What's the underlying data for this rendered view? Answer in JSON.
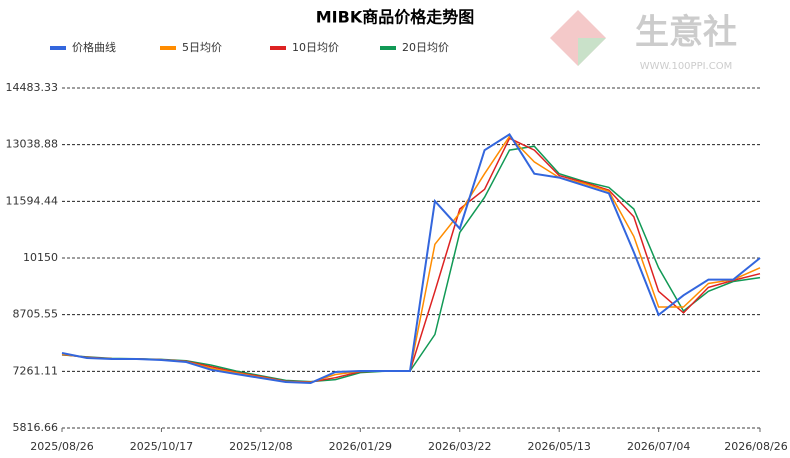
{
  "chart_data": {
    "type": "line",
    "title": "MIBK商品价格走势图",
    "watermark": {
      "name": "生意社",
      "url": "WWW.100PPI.COM"
    },
    "x": [
      "2025/08/26",
      "2025/09/08",
      "2025/09/21",
      "2025/10/04",
      "2025/10/17",
      "2025/10/30",
      "2025/11/12",
      "2025/11/25",
      "2025/12/08",
      "2025/12/21",
      "2026/01/03",
      "2026/01/16",
      "2026/01/29",
      "2026/02/11",
      "2026/02/24",
      "2026/03/09",
      "2026/03/22",
      "2026/04/04",
      "2026/04/17",
      "2026/04/30",
      "2026/05/13",
      "2026/05/26",
      "2026/06/08",
      "2026/06/21",
      "2026/07/04",
      "2026/07/17",
      "2026/07/30",
      "2026/08/12",
      "2026/08/26"
    ],
    "xlim": [
      "2025/08/26",
      "2026/08/26"
    ],
    "xticks": [
      "2025/08/26",
      "2025/10/17",
      "2025/12/08",
      "2026/01/29",
      "2026/03/22",
      "2026/05/13",
      "2026/07/04",
      "2026/08/26"
    ],
    "ylim": [
      5816.66,
      14483.33
    ],
    "yticks": [
      5816.66,
      7261.11,
      8705.55,
      10150,
      11594.44,
      13038.88,
      14483.33
    ],
    "grid": true,
    "legend": "top",
    "series": [
      {
        "name": "价格曲线",
        "color": "#3366dd",
        "values": [
          7728,
          7600,
          7575,
          7575,
          7550,
          7500,
          7300,
          7193,
          7090,
          6990,
          6964,
          7244,
          7270,
          7270,
          7270,
          11600,
          10900,
          12900,
          13300,
          12300,
          12200,
          12000,
          11800,
          10300,
          8700,
          9200,
          9600,
          9600,
          10150
        ]
      },
      {
        "name": "5日均价",
        "color": "#ff8c00",
        "values": [
          7700,
          7610,
          7580,
          7575,
          7555,
          7510,
          7340,
          7220,
          7110,
          7000,
          6980,
          7180,
          7265,
          7270,
          7270,
          10500,
          11300,
          12300,
          13250,
          12600,
          12200,
          12050,
          11850,
          10700,
          8900,
          8900,
          9500,
          9600,
          9900
        ]
      },
      {
        "name": "10日均价",
        "color": "#dd2222",
        "values": [
          7690,
          7620,
          7585,
          7578,
          7560,
          7520,
          7380,
          7240,
          7130,
          7010,
          6990,
          7100,
          7255,
          7270,
          7270,
          9300,
          11400,
          11900,
          13200,
          12900,
          12250,
          12080,
          11880,
          11200,
          9300,
          8750,
          9400,
          9580,
          9750
        ]
      },
      {
        "name": "20日均价",
        "color": "#119955",
        "values": [
          7680,
          7630,
          7590,
          7580,
          7565,
          7530,
          7420,
          7270,
          7150,
          7030,
          7000,
          7050,
          7230,
          7265,
          7270,
          8200,
          10800,
          11700,
          12900,
          13000,
          12300,
          12100,
          11950,
          11400,
          9900,
          8800,
          9300,
          9550,
          9650
        ]
      }
    ]
  }
}
